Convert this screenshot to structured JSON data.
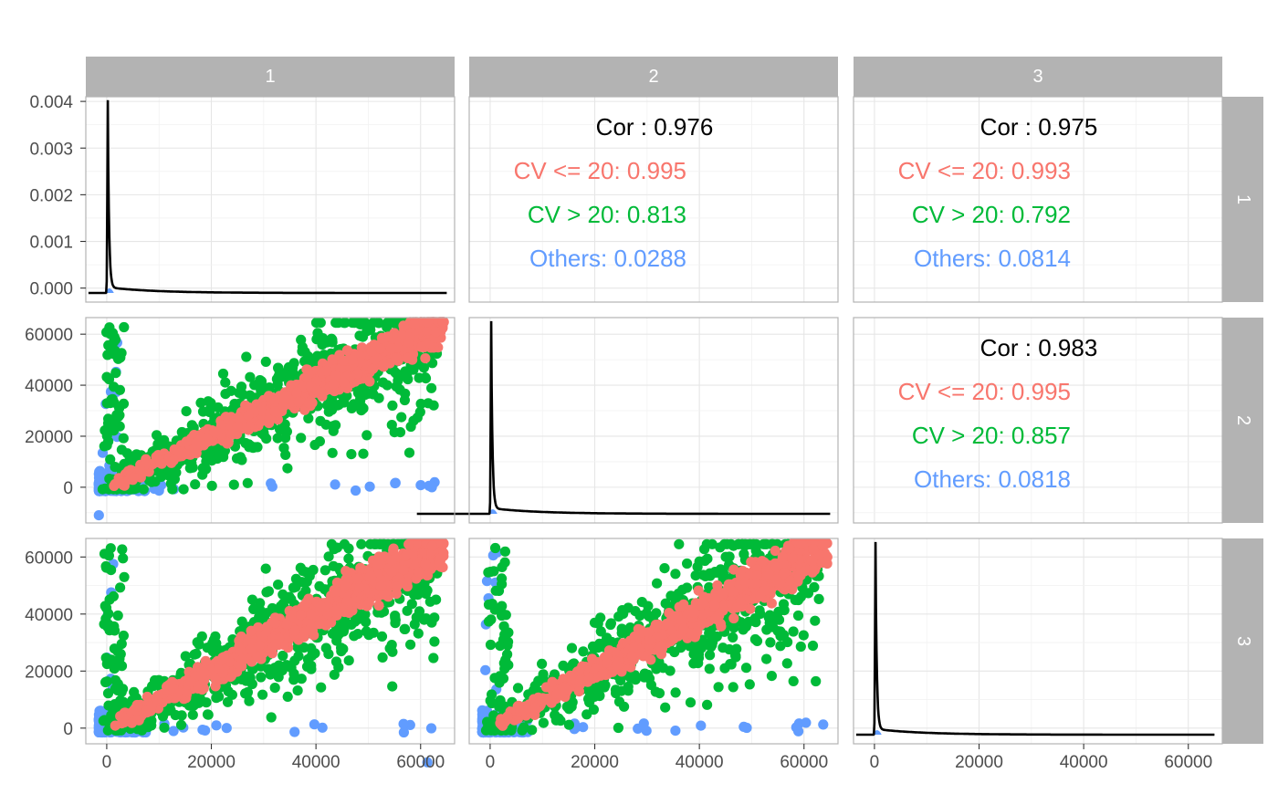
{
  "chart_data": {
    "type": "scatter",
    "layout": "pairs-matrix",
    "variables": [
      "1",
      "2",
      "3"
    ],
    "x_ticks": [
      0,
      20000,
      40000,
      60000
    ],
    "x_tick_labels": [
      "0",
      "20000",
      "40000",
      "60000"
    ],
    "xlim": [
      -4000,
      66500
    ],
    "density_panel_1": {
      "y_ticks": [
        0,
        0.001,
        0.002,
        0.003,
        0.004
      ],
      "y_tick_labels": [
        "0.000",
        "0.001",
        "0.002",
        "0.003",
        "0.004"
      ],
      "ylim": [
        -0.0003,
        0.0041
      ],
      "peak": 0.0045
    },
    "y_ticks_scatter": [
      0,
      20000,
      40000,
      60000
    ],
    "y_tick_labels_scatter": [
      "0",
      "20000",
      "40000",
      "60000"
    ],
    "ylim_scatter_row2": [
      -14000,
      66500
    ],
    "ylim_scatter_row3": [
      -5500,
      66500
    ],
    "groups": [
      {
        "name": "CV <= 20",
        "color": "#F8766D"
      },
      {
        "name": "CV > 20",
        "color": "#00BA38"
      },
      {
        "name": "Others",
        "color": "#619CFF"
      }
    ],
    "correlations": [
      {
        "pair": "1-2",
        "title": "Cor : 0.976",
        "lines": [
          "CV <= 20: 0.995",
          "CV > 20: 0.813",
          "Others: 0.0288"
        ]
      },
      {
        "pair": "1-3",
        "title": "Cor : 0.975",
        "lines": [
          "CV <= 20: 0.993",
          "CV > 20: 0.792",
          "Others: 0.0814"
        ]
      },
      {
        "pair": "2-3",
        "title": "Cor : 0.983",
        "lines": [
          "CV <= 20: 0.995",
          "CV > 20: 0.857",
          "Others: 0.0818"
        ]
      }
    ],
    "strip_color": "#B3B3B3",
    "density_color": "#000000",
    "grid": true
  }
}
